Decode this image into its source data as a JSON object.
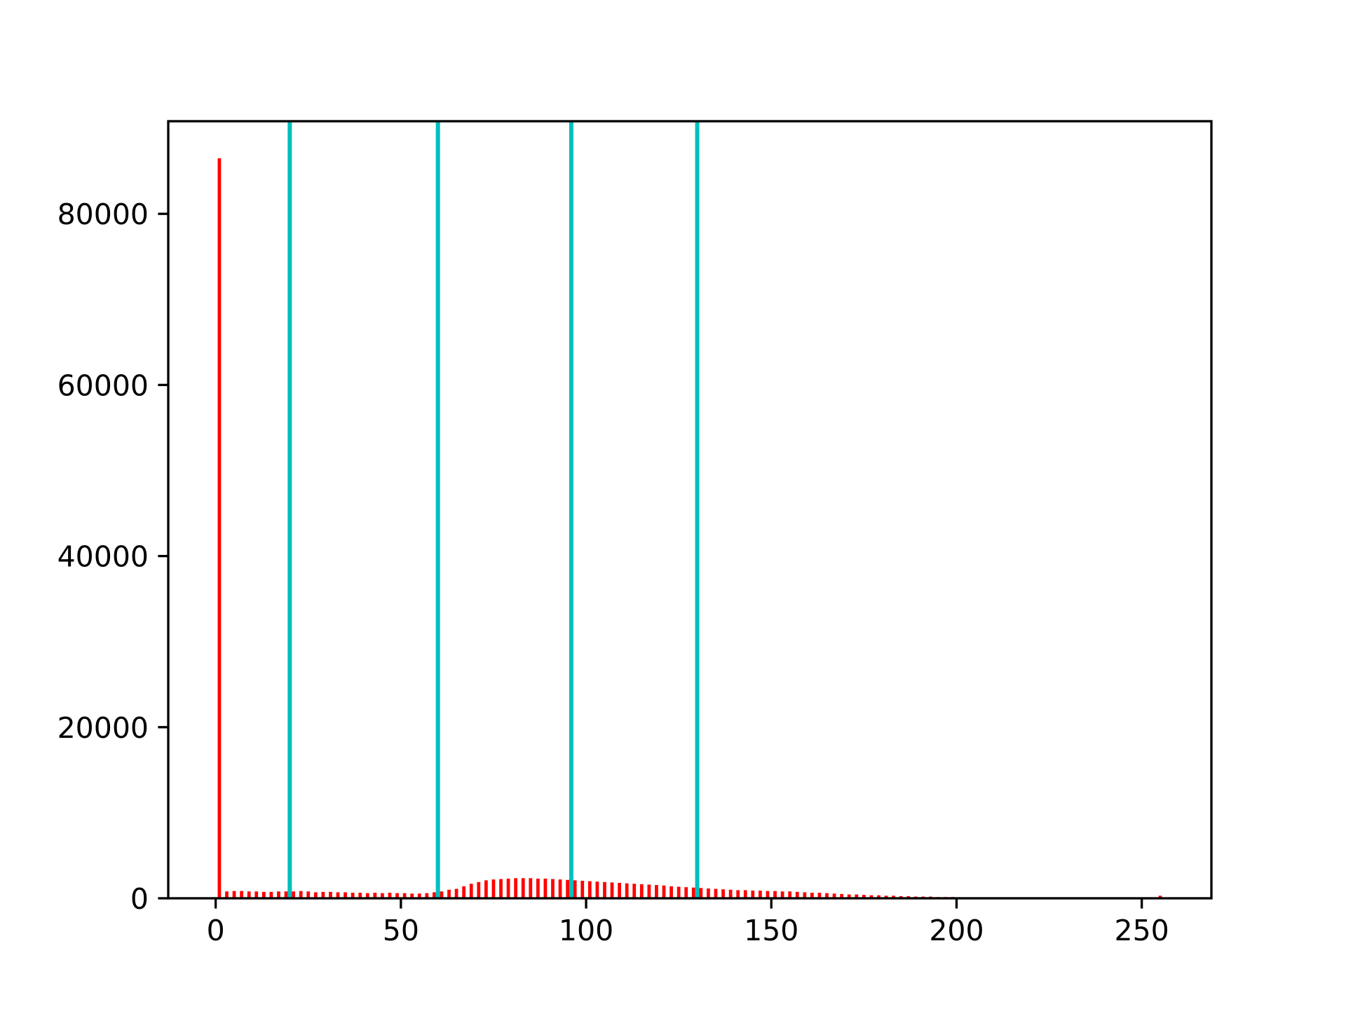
{
  "chart_data": {
    "type": "histogram",
    "bins": [
      0,
      2,
      4,
      6,
      8,
      10,
      12,
      14,
      16,
      18,
      20,
      22,
      24,
      26,
      28,
      30,
      32,
      34,
      36,
      38,
      40,
      42,
      44,
      46,
      48,
      50,
      52,
      54,
      56,
      58,
      60,
      62,
      64,
      66,
      68,
      70,
      72,
      74,
      76,
      78,
      80,
      82,
      84,
      86,
      88,
      90,
      92,
      94,
      96,
      98,
      100,
      102,
      104,
      106,
      108,
      110,
      112,
      114,
      116,
      118,
      120,
      122,
      124,
      126,
      128,
      130,
      132,
      134,
      136,
      138,
      140,
      142,
      144,
      146,
      148,
      150,
      152,
      154,
      156,
      158,
      160,
      162,
      164,
      166,
      168,
      170,
      172,
      174,
      176,
      178,
      180,
      182,
      184,
      186,
      188,
      190,
      192,
      194,
      196,
      198,
      200,
      202,
      204,
      206,
      208,
      210,
      212,
      214,
      216,
      218,
      220,
      222,
      224,
      226,
      228,
      230,
      232,
      234,
      236,
      238,
      240,
      242,
      244,
      246,
      248,
      250,
      252,
      254,
      256
    ],
    "values": [
      86500,
      800,
      850,
      850,
      800,
      800,
      750,
      750,
      800,
      800,
      800,
      850,
      800,
      700,
      750,
      750,
      700,
      700,
      650,
      650,
      600,
      650,
      600,
      650,
      600,
      600,
      550,
      550,
      600,
      700,
      800,
      1000,
      1100,
      1400,
      1700,
      1900,
      2100,
      2200,
      2250,
      2300,
      2350,
      2350,
      2350,
      2300,
      2300,
      2250,
      2200,
      2150,
      2100,
      2050,
      2000,
      1950,
      1900,
      1850,
      1800,
      1750,
      1700,
      1650,
      1600,
      1550,
      1500,
      1400,
      1350,
      1300,
      1250,
      1200,
      1150,
      1100,
      1050,
      1000,
      950,
      950,
      900,
      900,
      850,
      850,
      800,
      800,
      750,
      700,
      650,
      650,
      600,
      550,
      500,
      450,
      450,
      400,
      350,
      350,
      300,
      300,
      250,
      250,
      200,
      200,
      200,
      150,
      150,
      150,
      100,
      100,
      100,
      100,
      100,
      80,
      80,
      80,
      60,
      60,
      50,
      40,
      0,
      0,
      0,
      0,
      0,
      0,
      0,
      0,
      0,
      0,
      0,
      0,
      0,
      0,
      0,
      300
    ],
    "color": "#ff0000",
    "rwidth": 0.45,
    "vlines": [
      20,
      60,
      96,
      130
    ],
    "vline_color": "#00bfbf",
    "xlim": [
      -12.8,
      268.8
    ],
    "ylim": [
      0,
      90825
    ],
    "xticks": [
      0,
      50,
      100,
      150,
      200,
      250
    ],
    "yticks": [
      0,
      20000,
      40000,
      60000,
      80000
    ]
  }
}
